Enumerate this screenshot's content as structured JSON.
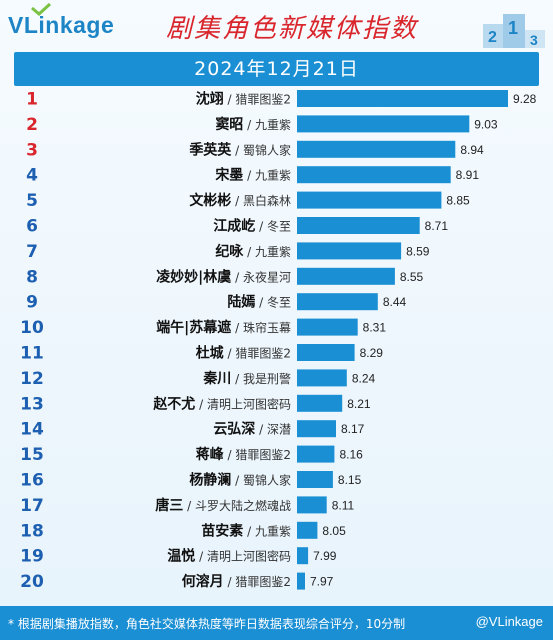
{
  "header": {
    "logo_text": "VLinkage",
    "title": "剧集角色新媒体指数",
    "podium_digits": [
      "2",
      "1",
      "3"
    ]
  },
  "date": "2024年12月21日",
  "colors": {
    "bar": "#1b8fd4",
    "rank_top3": "#d9262c",
    "rank_other": "#1d5fb0",
    "title": "#d9262c"
  },
  "chart_data": {
    "type": "bar",
    "orientation": "horizontal",
    "xlim": [
      0,
      9.28
    ],
    "categories": [
      {
        "rank": "1",
        "name": "沈翊",
        "drama": "猎罪图鉴2",
        "value": 9.28
      },
      {
        "rank": "2",
        "name": "窦昭",
        "drama": "九重紫",
        "value": 9.03
      },
      {
        "rank": "3",
        "name": "季英英",
        "drama": "蜀锦人家",
        "value": 8.94
      },
      {
        "rank": "4",
        "name": "宋墨",
        "drama": "九重紫",
        "value": 8.91
      },
      {
        "rank": "5",
        "name": "文彬彬",
        "drama": "黑白森林",
        "value": 8.85
      },
      {
        "rank": "6",
        "name": "江成屹",
        "drama": "冬至",
        "value": 8.71
      },
      {
        "rank": "7",
        "name": "纪咏",
        "drama": "九重紫",
        "value": 8.59
      },
      {
        "rank": "8",
        "name": "凌妙妙|林虞",
        "drama": "永夜星河",
        "value": 8.55
      },
      {
        "rank": "9",
        "name": "陆嫣",
        "drama": "冬至",
        "value": 8.44
      },
      {
        "rank": "10",
        "name": "端午|苏幕遮",
        "drama": "珠帘玉幕",
        "value": 8.31
      },
      {
        "rank": "11",
        "name": "杜城",
        "drama": "猎罪图鉴2",
        "value": 8.29
      },
      {
        "rank": "12",
        "name": "秦川",
        "drama": "我是刑警",
        "value": 8.24
      },
      {
        "rank": "13",
        "name": "赵不尤",
        "drama": "清明上河图密码",
        "value": 8.21
      },
      {
        "rank": "14",
        "name": "云弘深",
        "drama": "深潜",
        "value": 8.17
      },
      {
        "rank": "15",
        "name": "蒋峰",
        "drama": "猎罪图鉴2",
        "value": 8.16
      },
      {
        "rank": "16",
        "name": "杨静澜",
        "drama": "蜀锦人家",
        "value": 8.15
      },
      {
        "rank": "17",
        "name": "唐三",
        "drama": "斗罗大陆之燃魂战",
        "value": 8.11
      },
      {
        "rank": "18",
        "name": "苗安素",
        "drama": "九重紫",
        "value": 8.05
      },
      {
        "rank": "19",
        "name": "温悦",
        "drama": "清明上河图密码",
        "value": 7.99
      },
      {
        "rank": "20",
        "name": "何溶月",
        "drama": "猎罪图鉴2",
        "value": 7.97
      }
    ],
    "separator": "/"
  },
  "footer": {
    "note": "* 根据剧集播放指数，角色社交媒体热度等昨日数据表现综合评分，10分制",
    "watermark": "@VLinkage"
  }
}
